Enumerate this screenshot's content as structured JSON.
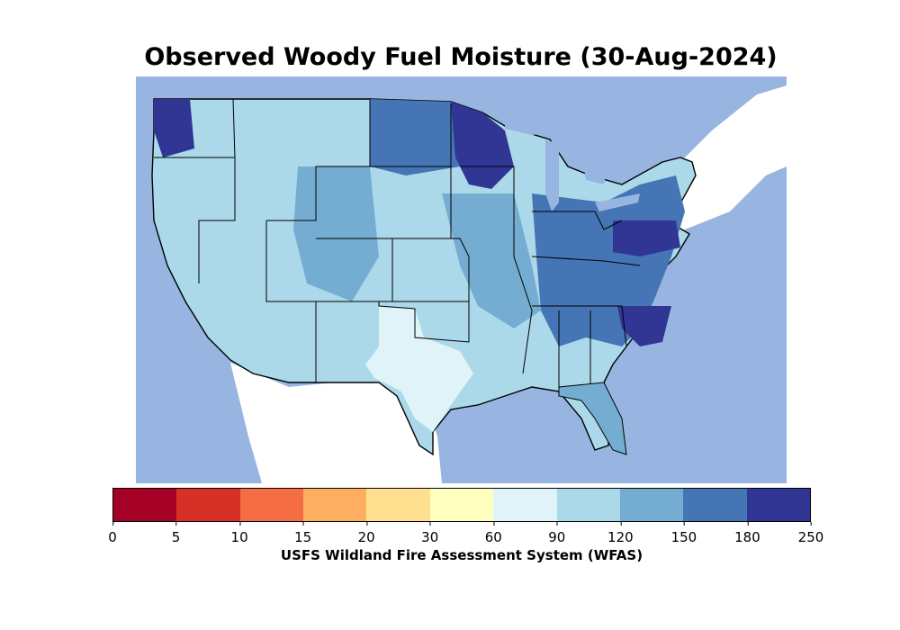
{
  "title": "Observed Woody Fuel Moisture (30-Aug-2024)",
  "colorbar": {
    "label": "USFS Wildland Fire Assessment System (WFAS)",
    "ticks": [
      "0",
      "5",
      "10",
      "15",
      "20",
      "30",
      "60",
      "90",
      "120",
      "150",
      "180",
      "250"
    ],
    "colors": [
      "#a50026",
      "#d73027",
      "#f46d43",
      "#fdae61",
      "#fee090",
      "#ffffbf",
      "#e0f3f8",
      "#abd9e9",
      "#74add1",
      "#4575b4",
      "#313695"
    ]
  },
  "map": {
    "background_color": "#97b5e0",
    "land_outside_color": "#ffffff"
  }
}
